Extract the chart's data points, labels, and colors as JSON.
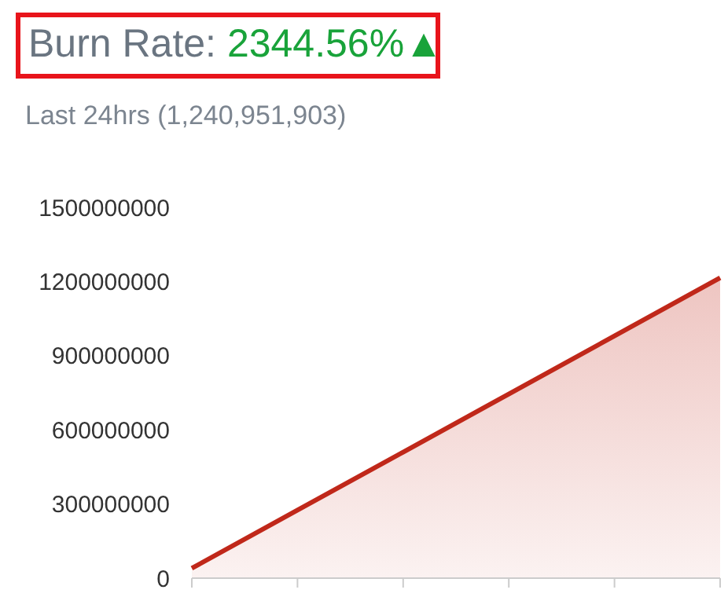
{
  "chart_data": {
    "type": "area",
    "title": "Burn Rate:",
    "subtitle": "Last 24hrs (1,240,951,903)",
    "annotations": [
      "2344.56%▲"
    ],
    "categories": [
      null,
      null,
      null,
      null,
      null,
      null
    ],
    "series": [
      {
        "color": "#c0281a",
        "values": [
          40000000,
          275000000,
          510000000,
          745000000,
          980000000,
          1215000000
        ]
      }
    ],
    "ylim": [
      0,
      1500000000
    ],
    "yticks": [
      0,
      300000000,
      600000000,
      900000000,
      1200000000,
      1500000000
    ],
    "marker": "none"
  }
}
